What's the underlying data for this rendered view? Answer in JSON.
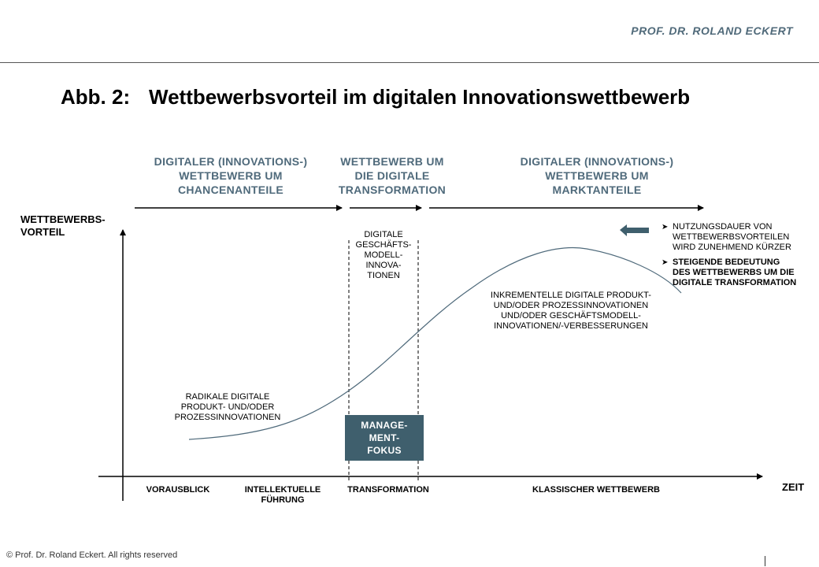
{
  "header": {
    "author": "PROF. DR. ROLAND ECKERT"
  },
  "figure": {
    "label": "Abb. 2:",
    "title": "Wettbewerbsvorteil im digitalen Innovationswettbewerb"
  },
  "phases": [
    {
      "lines": [
        "DIGITALER (INNOVATIONS-)",
        "WETTBEWERB UM",
        "CHANCENANTEILE"
      ]
    },
    {
      "lines": [
        "WETTBEWERB UM",
        "DIE DIGITALE",
        "TRANSFORMATION"
      ]
    },
    {
      "lines": [
        "DIGITALER (INNOVATIONS-)",
        "WETTBEWERB UM",
        "MARKTANTEILE"
      ]
    }
  ],
  "axes": {
    "y_label_lines": [
      "WETTBEWERBS-",
      "VORTEIL"
    ],
    "x_label": "ZEIT"
  },
  "annotations": {
    "digital_bm": [
      "DIGITALE",
      "GESCHÄFTS-",
      "MODELL-",
      "INNOVA-",
      "TIONEN"
    ],
    "incremental": [
      "INKREMENTELLE DIGITALE PRODUKT-",
      "UND/ODER PROZESSINNOVATIONEN",
      "UND/ODER GESCHÄFTSMODELL-",
      "INNOVATIONEN/-VERBESSERUNGEN"
    ],
    "radical": [
      "RADIKALE DIGITALE",
      "PRODUKT- UND/ODER",
      "PROZESSINNOVATIONEN"
    ],
    "management_focus": "MANAGE-\nMENT-\nFOKUS"
  },
  "bullets": [
    {
      "lines": [
        "NUTZUNGSDAUER VON",
        "WETTBEWERBSVORTEILEN",
        "WIRD ZUNEHMEND KÜRZER"
      ],
      "bold": false
    },
    {
      "lines": [
        "STEIGENDE BEDEUTUNG",
        "DES WETTBEWERBS UM DIE",
        "DIGITALE TRANSFORMATION"
      ],
      "bold": true
    }
  ],
  "stages": [
    {
      "lines": [
        "VORAUSBLICK"
      ]
    },
    {
      "lines": [
        "INTELLEKTUELLE",
        "FÜHRUNG"
      ]
    },
    {
      "lines": [
        "TRANSFORMATION"
      ]
    },
    {
      "lines": [
        "KLASSISCHER WETTBEWERB"
      ]
    }
  ],
  "footer": {
    "copyright": "© Prof. Dr. Roland Eckert. All rights reserved"
  },
  "colors": {
    "accent": "#4f6a7b",
    "box": "#3f5f6d",
    "header_text": "#506a7a"
  }
}
